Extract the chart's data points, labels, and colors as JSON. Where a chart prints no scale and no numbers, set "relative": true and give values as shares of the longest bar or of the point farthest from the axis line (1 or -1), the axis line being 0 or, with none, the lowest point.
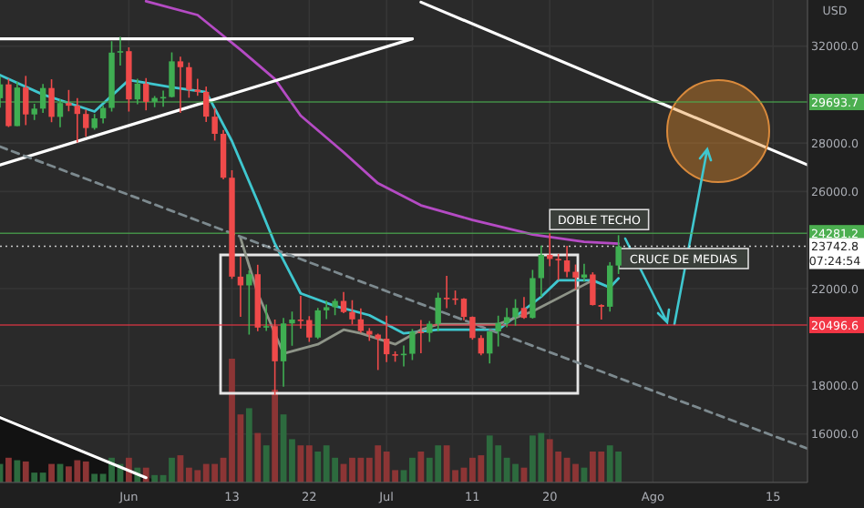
{
  "chart_data": [
    {
      "type": "candlestick",
      "ylabel": "USD",
      "x": [
        "--05-17",
        "--05-18",
        "--05-19",
        "--05-20",
        "--05-21",
        "--05-22",
        "--05-23",
        "--05-24",
        "--05-25",
        "--05-26",
        "--05-27",
        "--05-28",
        "--05-29",
        "--05-30",
        "--05-31",
        "--06-01",
        "--06-02",
        "--06-03",
        "--06-04",
        "--06-05",
        "--06-06",
        "--06-07",
        "--06-08",
        "--06-09",
        "--06-10",
        "--06-11",
        "--06-12",
        "--06-13",
        "--06-14",
        "--06-15",
        "--06-16",
        "--06-17",
        "--06-18",
        "--06-19",
        "--06-20",
        "--06-21",
        "--06-22",
        "--06-23",
        "--06-24",
        "--06-25",
        "--06-26",
        "--06-27",
        "--06-28",
        "--06-29",
        "--06-30",
        "--07-01",
        "--07-02",
        "--07-03",
        "--07-04",
        "--07-05",
        "--07-06",
        "--07-07",
        "--07-08",
        "--07-09",
        "--07-10",
        "--07-11",
        "--07-12",
        "--07-13",
        "--07-14",
        "--07-15",
        "--07-16",
        "--07-17",
        "--07-18",
        "--07-19",
        "--07-20",
        "--07-21",
        "--07-22",
        "--07-23",
        "--07-24",
        "--07-25",
        "--07-26",
        "--07-27",
        "--07-28"
      ],
      "ohlc": [
        [
          29850,
          30760,
          29460,
          30420
        ],
        [
          30420,
          30650,
          28660,
          28700
        ],
        [
          28700,
          30530,
          28700,
          30290
        ],
        [
          30290,
          30770,
          28740,
          29180
        ],
        [
          29180,
          29620,
          28950,
          29420
        ],
        [
          29420,
          30440,
          29240,
          30270
        ],
        [
          30270,
          30630,
          28860,
          29080
        ],
        [
          29080,
          29810,
          28650,
          29650
        ],
        [
          29650,
          30190,
          29310,
          29540
        ],
        [
          29540,
          29850,
          28020,
          29200
        ],
        [
          29200,
          29380,
          28270,
          28620
        ],
        [
          28620,
          29200,
          28550,
          29020
        ],
        [
          29020,
          29550,
          28810,
          29450
        ],
        [
          29450,
          32200,
          29300,
          31730
        ],
        [
          31730,
          32380,
          31200,
          31790
        ],
        [
          31790,
          31950,
          29300,
          29800
        ],
        [
          29800,
          30650,
          29600,
          30450
        ],
        [
          30450,
          30680,
          29350,
          29700
        ],
        [
          29700,
          29940,
          29480,
          29860
        ],
        [
          29860,
          30160,
          29500,
          29900
        ],
        [
          29900,
          31740,
          29880,
          31370
        ],
        [
          31370,
          31560,
          29240,
          31130
        ],
        [
          31130,
          31320,
          29870,
          30200
        ],
        [
          30200,
          30650,
          29950,
          30110
        ],
        [
          30110,
          30330,
          28870,
          29090
        ],
        [
          29090,
          29440,
          28100,
          28380
        ],
        [
          28380,
          28540,
          26500,
          26570
        ],
        [
          26570,
          26880,
          22400,
          22490
        ],
        [
          22490,
          23310,
          20830,
          22130
        ],
        [
          22130,
          22750,
          20100,
          22590
        ],
        [
          22590,
          22980,
          20240,
          20390
        ],
        [
          20390,
          21340,
          20250,
          20450
        ],
        [
          20450,
          20720,
          17600,
          19000
        ],
        [
          19000,
          20790,
          17950,
          20560
        ],
        [
          20560,
          21050,
          19640,
          20720
        ],
        [
          20720,
          21700,
          20350,
          20700
        ],
        [
          20700,
          20860,
          19800,
          19980
        ],
        [
          19980,
          21200,
          19920,
          21100
        ],
        [
          21100,
          21500,
          20740,
          21230
        ],
        [
          21230,
          21580,
          20900,
          21490
        ],
        [
          21490,
          21860,
          20980,
          21030
        ],
        [
          21030,
          21520,
          20520,
          20730
        ],
        [
          20730,
          21180,
          20180,
          20250
        ],
        [
          20250,
          20370,
          19840,
          20100
        ],
        [
          20100,
          20140,
          18640,
          19930
        ],
        [
          19930,
          20880,
          18970,
          19290
        ],
        [
          19290,
          19410,
          18980,
          19250
        ],
        [
          19250,
          19650,
          18790,
          19310
        ],
        [
          19310,
          20330,
          19050,
          20220
        ],
        [
          20220,
          20700,
          19330,
          20170
        ],
        [
          20170,
          20660,
          19800,
          20550
        ],
        [
          20550,
          21830,
          20230,
          21620
        ],
        [
          21620,
          22520,
          21190,
          21590
        ],
        [
          21590,
          21920,
          21330,
          21580
        ],
        [
          21580,
          21600,
          20690,
          20830
        ],
        [
          20830,
          20850,
          19890,
          19960
        ],
        [
          19960,
          20070,
          19250,
          19320
        ],
        [
          19320,
          20230,
          18910,
          20230
        ],
        [
          20230,
          20880,
          19610,
          20580
        ],
        [
          20580,
          21200,
          20400,
          20820
        ],
        [
          20820,
          21560,
          20470,
          21200
        ],
        [
          21200,
          21650,
          20750,
          20790
        ],
        [
          20790,
          22770,
          20760,
          22430
        ],
        [
          22430,
          23770,
          21660,
          23390
        ],
        [
          23390,
          24280,
          22920,
          23220
        ],
        [
          23220,
          23430,
          22350,
          23160
        ],
        [
          23160,
          23760,
          22470,
          22690
        ],
        [
          22690,
          22990,
          21960,
          22450
        ],
        [
          22450,
          23020,
          22290,
          22580
        ],
        [
          22580,
          22670,
          21300,
          21320
        ],
        [
          21320,
          21350,
          20720,
          21250
        ],
        [
          21250,
          23090,
          21050,
          22950
        ],
        [
          22950,
          24200,
          22600,
          23742.8
        ]
      ],
      "series": [
        {
          "type": "line",
          "color": "#b54bc4",
          "x": [
            "--06-03",
            "--06-09",
            "--06-14",
            "--06-18",
            "--06-21",
            "--06-26",
            "--06-30",
            "--07-05",
            "--07-11",
            "--07-18",
            "--07-24",
            "--07-28"
          ],
          "values": [
            33850,
            33280,
            31850,
            30640,
            29130,
            27620,
            26340,
            25430,
            24830,
            24230,
            23930,
            23850
          ]
        },
        {
          "type": "line",
          "color": "#3fc7cf",
          "x": [
            "--05-17",
            "--05-22",
            "--05-28",
            "--06-01",
            "--06-06",
            "--06-10",
            "--06-13",
            "--06-16",
            "--06-18",
            "--06-21",
            "--06-25",
            "--06-29",
            "--07-03",
            "--07-07",
            "--07-11",
            "--07-14",
            "--07-19",
            "--07-21",
            "--07-25",
            "--07-27",
            "--07-28"
          ],
          "values": [
            30800,
            30000,
            29300,
            30600,
            30300,
            30100,
            28080,
            25580,
            23850,
            21800,
            21280,
            20900,
            20150,
            20300,
            20300,
            20300,
            21660,
            22340,
            22340,
            22040,
            22420
          ]
        },
        {
          "type": "line",
          "color": "#8e9488",
          "x": [
            "--06-14",
            "--06-16",
            "--06-19",
            "--06-23",
            "--06-26",
            "--06-28",
            "--07-02",
            "--07-05",
            "--07-07",
            "--07-14",
            "--07-18",
            "--07-25"
          ],
          "values": [
            24080,
            21810,
            19320,
            19700,
            20300,
            20150,
            19700,
            20300,
            20530,
            20530,
            21060,
            22340
          ]
        },
        {
          "type": "line",
          "color": "#ffffff",
          "x": [
            "--05-17",
            "--07-04"
          ],
          "values": [
            32300,
            32300
          ]
        },
        {
          "type": "line",
          "color": "#ffffff",
          "x": [
            "--05-17",
            "--07-04"
          ],
          "values": [
            27100,
            32300
          ]
        },
        {
          "type": "line",
          "color": "#ffffff",
          "x": [
            "--07-05",
            "--08-19"
          ],
          "values": [
            33810,
            27100
          ]
        },
        {
          "type": "line",
          "color": "#ffffff",
          "x": [
            "--05-17",
            "--06-03"
          ],
          "values": [
            16680,
            14200
          ]
        },
        {
          "type": "line",
          "color": "#7d8a8f",
          "line_style": "dashed",
          "x": [
            "--05-17",
            "--08-19"
          ],
          "values": [
            27850,
            15400
          ]
        }
      ],
      "xlim": [
        "--05-17",
        "--08-19"
      ],
      "ylim": [
        14000,
        33900
      ],
      "xticks": [
        {
          "value": "--06-01",
          "label": "Jun"
        },
        {
          "value": "--06-13",
          "label": "13"
        },
        {
          "value": "--06-22",
          "label": "22"
        },
        {
          "value": "--07-01",
          "label": "Jul"
        },
        {
          "value": "--07-11",
          "label": "11"
        },
        {
          "value": "--07-20",
          "label": "20"
        },
        {
          "value": "--08-01",
          "label": "Ago"
        },
        {
          "value": "--08-15",
          "label": "15"
        }
      ],
      "yticks": [
        {
          "value": 16000,
          "label": "16000.0"
        },
        {
          "value": 18000,
          "label": "18000.0"
        },
        {
          "value": 22000,
          "label": "22000.0"
        },
        {
          "value": 26000,
          "label": "26000.0"
        },
        {
          "value": 28000,
          "label": "28000.0"
        },
        {
          "value": 32000,
          "label": "32000.0"
        }
      ],
      "grid": true,
      "ref_lines": [
        {
          "axis": "y",
          "value": 29693.7,
          "label": "29693.7",
          "color": "#4caf50"
        },
        {
          "axis": "y",
          "value": 24281.2,
          "label": "24281.2",
          "color": "#4caf50"
        },
        {
          "axis": "y",
          "value": 20496.6,
          "label": "20496.6",
          "color": "#f23645"
        },
        {
          "axis": "y",
          "value": 23742.8,
          "label": "23742.8",
          "color": "#ffffff",
          "line_style": "dotted"
        }
      ],
      "annotations": [
        {
          "text": "DOBLE TECHO",
          "x": "--07-20",
          "y": 24280
        },
        "CRUCE DE MEDIAS",
        "07:24:54"
      ]
    },
    {
      "type": "bar",
      "relative": true,
      "xlim": [
        "--05-17",
        "--08-19"
      ],
      "x": [
        "--05-17",
        "--05-18",
        "--05-19",
        "--05-20",
        "--05-21",
        "--05-22",
        "--05-23",
        "--05-24",
        "--05-25",
        "--05-26",
        "--05-27",
        "--05-28",
        "--05-29",
        "--05-30",
        "--05-31",
        "--06-01",
        "--06-02",
        "--06-03",
        "--06-04",
        "--06-05",
        "--06-06",
        "--06-07",
        "--06-08",
        "--06-09",
        "--06-10",
        "--06-11",
        "--06-12",
        "--06-13",
        "--06-14",
        "--06-15",
        "--06-16",
        "--06-17",
        "--06-18",
        "--06-19",
        "--06-20",
        "--06-21",
        "--06-22",
        "--06-23",
        "--06-24",
        "--06-25",
        "--06-26",
        "--06-27",
        "--06-28",
        "--06-29",
        "--06-30",
        "--07-01",
        "--07-02",
        "--07-03",
        "--07-04",
        "--07-05",
        "--07-06",
        "--07-07",
        "--07-08",
        "--07-09",
        "--07-10",
        "--07-11",
        "--07-12",
        "--07-13",
        "--07-14",
        "--07-15",
        "--07-16",
        "--07-17",
        "--07-18",
        "--07-19",
        "--07-20",
        "--07-21",
        "--07-22",
        "--07-23",
        "--07-24",
        "--07-25",
        "--07-26",
        "--07-27",
        "--07-28"
      ],
      "values": [
        0.15,
        0.2,
        0.18,
        0.17,
        0.08,
        0.08,
        0.15,
        0.15,
        0.13,
        0.18,
        0.17,
        0.07,
        0.07,
        0.2,
        0.15,
        0.2,
        0.12,
        0.12,
        0.06,
        0.06,
        0.2,
        0.22,
        0.12,
        0.1,
        0.15,
        0.15,
        0.2,
        1,
        0.55,
        0.6,
        0.4,
        0.3,
        0.75,
        0.55,
        0.35,
        0.3,
        0.3,
        0.25,
        0.3,
        0.2,
        0.15,
        0.2,
        0.2,
        0.2,
        0.3,
        0.25,
        0.1,
        0.1,
        0.2,
        0.25,
        0.2,
        0.3,
        0.3,
        0.1,
        0.12,
        0.2,
        0.22,
        0.38,
        0.3,
        0.2,
        0.15,
        0.12,
        0.38,
        0.4,
        0.35,
        0.25,
        0.2,
        0.15,
        0.12,
        0.25,
        0.25,
        0.3,
        0.25
      ],
      "colors": [
        "#2d6a3e",
        "#8c3535",
        "#2d6a3e",
        "#8c3535",
        "#2d6a3e",
        "#2d6a3e",
        "#8c3535",
        "#2d6a3e",
        "#8c3535",
        "#8c3535",
        "#8c3535",
        "#2d6a3e",
        "#2d6a3e",
        "#2d6a3e",
        "#2d6a3e",
        "#8c3535",
        "#2d6a3e",
        "#8c3535",
        "#2d6a3e",
        "#2d6a3e",
        "#2d6a3e",
        "#8c3535",
        "#8c3535",
        "#8c3535",
        "#8c3535",
        "#8c3535",
        "#8c3535",
        "#8c3535",
        "#8c3535",
        "#2d6a3e",
        "#8c3535",
        "#2d6a3e",
        "#8c3535",
        "#2d6a3e",
        "#2d6a3e",
        "#8c3535",
        "#8c3535",
        "#2d6a3e",
        "#2d6a3e",
        "#2d6a3e",
        "#8c3535",
        "#8c3535",
        "#8c3535",
        "#8c3535",
        "#8c3535",
        "#8c3535",
        "#8c3535",
        "#2d6a3e",
        "#2d6a3e",
        "#8c3535",
        "#2d6a3e",
        "#2d6a3e",
        "#8c3535",
        "#8c3535",
        "#8c3535",
        "#8c3535",
        "#8c3535",
        "#2d6a3e",
        "#2d6a3e",
        "#2d6a3e",
        "#2d6a3e",
        "#8c3535",
        "#2d6a3e",
        "#2d6a3e",
        "#8c3535",
        "#8c3535",
        "#8c3535",
        "#8c3535",
        "#2d6a3e",
        "#8c3535",
        "#8c3535",
        "#2d6a3e",
        "#2d6a3e"
      ]
    }
  ]
}
